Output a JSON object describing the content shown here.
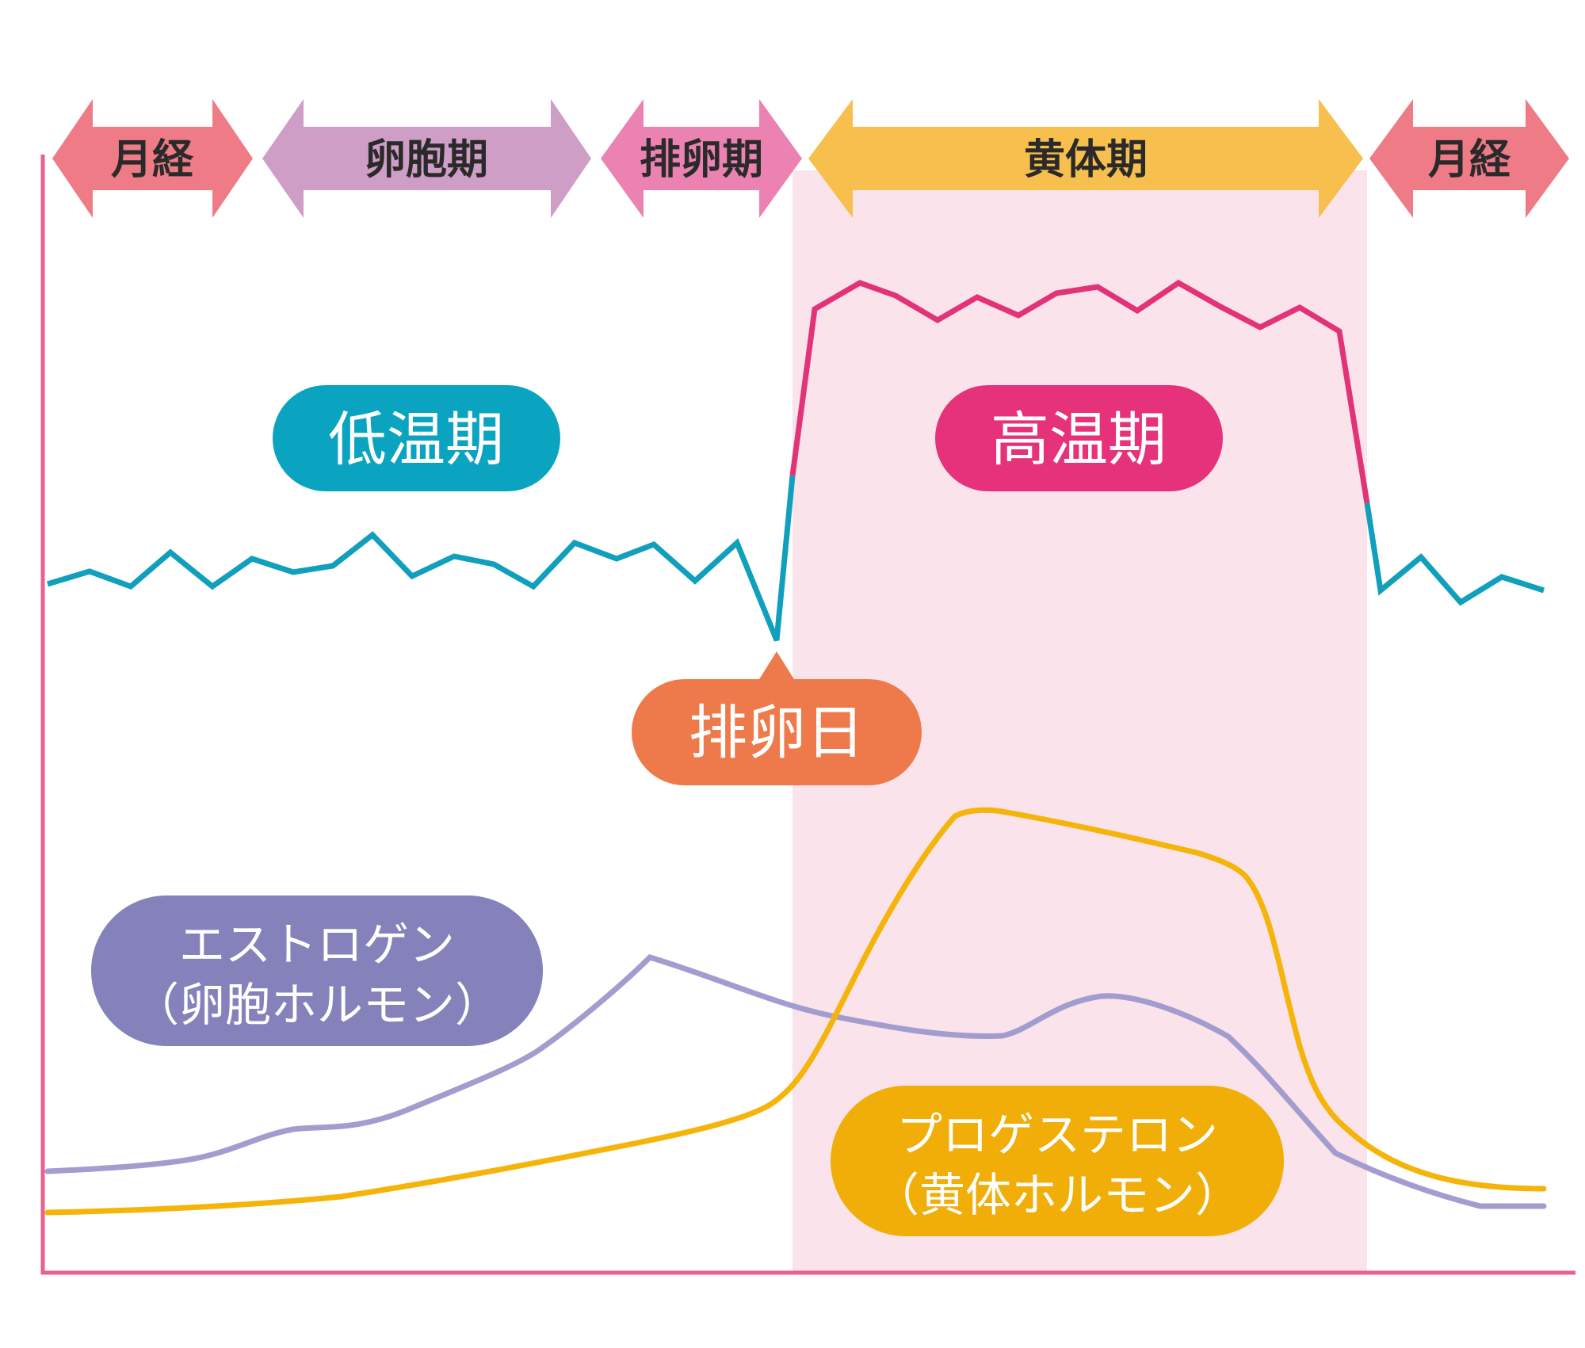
{
  "phases": [
    {
      "label": "月経",
      "color": "#ee7b86"
    },
    {
      "label": "卵胞期",
      "color": "#cf9ec6"
    },
    {
      "label": "排卵期",
      "color": "#ec82b2"
    },
    {
      "label": "黄体期",
      "color": "#f7c04e"
    },
    {
      "label": "月経",
      "color": "#ee7b86"
    }
  ],
  "badges": {
    "low_temp": {
      "label": "低温期",
      "color": "#0aa4c1"
    },
    "high_temp": {
      "label": "高温期",
      "color": "#e6327a"
    },
    "ovulation_day": {
      "label": "排卵日",
      "color": "#ee7a4b"
    },
    "estrogen": {
      "line1": "エストロゲン",
      "line2": "（卵胞ホルモン）",
      "color": "#8481bb"
    },
    "progesterone": {
      "line1": "プロゲステロン",
      "line2": "（黄体ホルモン）",
      "color": "#f1ae09"
    }
  },
  "colors": {
    "axis": "#e8628c",
    "luteal_band": "#fae3ea",
    "low_line": "#109fbc",
    "high_line": "#e23379",
    "estrogen_line": "#a29dce",
    "progesterone_line": "#f5b40a"
  }
}
